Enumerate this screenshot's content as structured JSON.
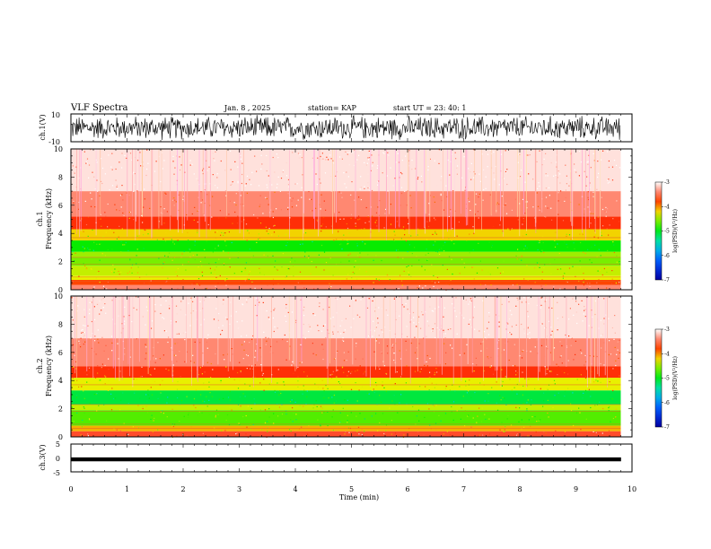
{
  "header": {
    "title": "VLF Spectra",
    "date": "Jan. 8 , 2025",
    "station": "station= KAP",
    "start": "start UT = 23: 40: 1"
  },
  "chart_data": [
    {
      "type": "line",
      "name": "ch1-waveform",
      "ylabel": "ch.1(V)",
      "ylim": [
        -10,
        10
      ],
      "yticks": [
        "10",
        "-10"
      ],
      "xlim": [
        0,
        10
      ],
      "data_end_min": 9.8,
      "note_values": "dense broadband waveform filling most of the +-10 V range"
    },
    {
      "type": "heatmap",
      "name": "ch1-spectrogram",
      "ylabel": "ch.1\nFrequency (kHz)",
      "ylabel_lines": [
        "ch.1",
        "Frequency (kHz)"
      ],
      "ylim": [
        0,
        10
      ],
      "yticks": [
        "0",
        "2",
        "4",
        "6",
        "8",
        "10"
      ],
      "xlim": [
        0,
        10
      ],
      "data_end_min": 9.8,
      "bands": [
        {
          "f0": 0.0,
          "f1": 0.35,
          "level": -3.4
        },
        {
          "f0": 0.35,
          "f1": 0.7,
          "level": -3.8
        },
        {
          "f0": 0.7,
          "f1": 1.0,
          "level": -4.3
        },
        {
          "f0": 1.0,
          "f1": 1.7,
          "level": -4.4
        },
        {
          "f0": 1.7,
          "f1": 2.3,
          "level": -4.6
        },
        {
          "f0": 2.3,
          "f1": 2.7,
          "level": -4.5
        },
        {
          "f0": 2.7,
          "f1": 3.5,
          "level": -4.9
        },
        {
          "f0": 3.5,
          "f1": 4.3,
          "level": -4.2
        },
        {
          "f0": 4.3,
          "f1": 5.2,
          "level": -3.7
        },
        {
          "f0": 5.2,
          "f1": 7.0,
          "level": -3.4
        },
        {
          "f0": 7.0,
          "f1": 10.0,
          "level": -3.1
        }
      ],
      "colorbar": {
        "label": "log(PSD)(V²/Hz)",
        "range": [
          -7,
          -3
        ],
        "ticks": [
          "-3",
          "-4",
          "-5",
          "-6",
          "-7"
        ]
      }
    },
    {
      "type": "heatmap",
      "name": "ch2-spectrogram",
      "ylabel": "ch.2\nFrequency (kHz)",
      "ylabel_lines": [
        "ch.2",
        "Frequency (kHz)"
      ],
      "ylim": [
        0,
        10
      ],
      "yticks": [
        "0",
        "2",
        "4",
        "6",
        "8",
        "10"
      ],
      "xlim": [
        0,
        10
      ],
      "data_end_min": 9.8,
      "bands": [
        {
          "f0": 0.0,
          "f1": 0.4,
          "level": -3.6
        },
        {
          "f0": 0.4,
          "f1": 0.8,
          "level": -4.1
        },
        {
          "f0": 0.8,
          "f1": 1.9,
          "level": -4.7
        },
        {
          "f0": 1.9,
          "f1": 2.3,
          "level": -4.4
        },
        {
          "f0": 2.3,
          "f1": 3.3,
          "level": -5.1
        },
        {
          "f0": 3.3,
          "f1": 4.2,
          "level": -4.3
        },
        {
          "f0": 4.2,
          "f1": 5.0,
          "level": -3.7
        },
        {
          "f0": 5.0,
          "f1": 7.0,
          "level": -3.4
        },
        {
          "f0": 7.0,
          "f1": 10.0,
          "level": -3.1
        }
      ],
      "colorbar": {
        "label": "log(PSD)(V²/Hz)",
        "range": [
          -7,
          -3
        ],
        "ticks": [
          "-3",
          "-4",
          "-5",
          "-6",
          "-7"
        ]
      }
    },
    {
      "type": "line",
      "name": "ch3-waveform",
      "ylabel": "ch.3(V)",
      "ylim": [
        -5,
        5
      ],
      "yticks": [
        "5",
        "0",
        "-5"
      ],
      "xlim": [
        0,
        10
      ],
      "data_end_min": 9.8,
      "baseline_v": -0.5,
      "amplitude_v": 0.6
    }
  ],
  "xaxis": {
    "label": "Time (min)",
    "ticks": [
      "0",
      "1",
      "2",
      "3",
      "4",
      "5",
      "6",
      "7",
      "8",
      "9",
      "10"
    ]
  }
}
